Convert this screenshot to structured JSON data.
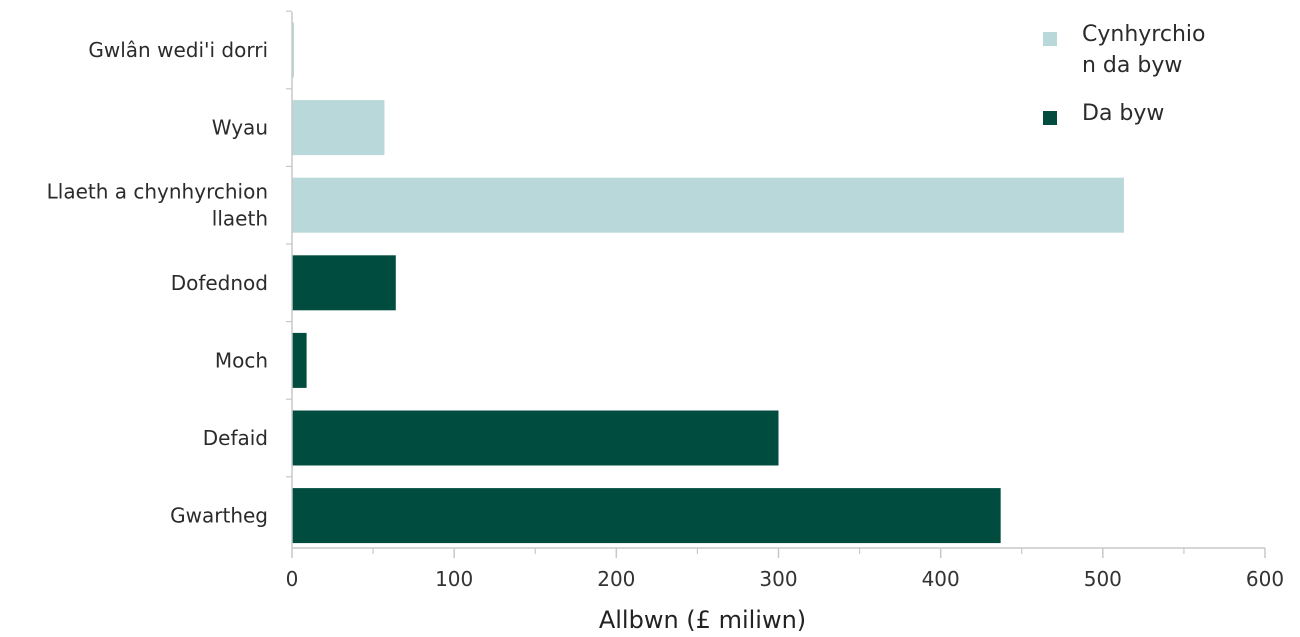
{
  "chart_data": {
    "type": "bar",
    "orientation": "horizontal",
    "categories": [
      [
        "Gwlân wedi'i dorri"
      ],
      [
        "Wyau"
      ],
      [
        "Llaeth a chynhyrchion",
        "llaeth"
      ],
      [
        "Dofednod"
      ],
      [
        "Moch"
      ],
      [
        "Defaid"
      ],
      [
        "Gwartheg"
      ]
    ],
    "values": [
      1,
      57,
      513,
      64,
      9,
      300,
      437
    ],
    "bar_series": [
      0,
      0,
      0,
      1,
      1,
      1,
      1
    ],
    "series": [
      {
        "name_lines": [
          "Cynhyrchio",
          "n da byw"
        ],
        "color": "#b9d8d9"
      },
      {
        "name_lines": [
          "Da byw"
        ],
        "color": "#004c3f"
      }
    ],
    "xlabel": "Allbwn (£ miliwn)",
    "xlim": [
      0,
      600
    ],
    "xticks": [
      0,
      100,
      200,
      300,
      400,
      500,
      600
    ],
    "grid": false,
    "legend_position": "top-right"
  }
}
